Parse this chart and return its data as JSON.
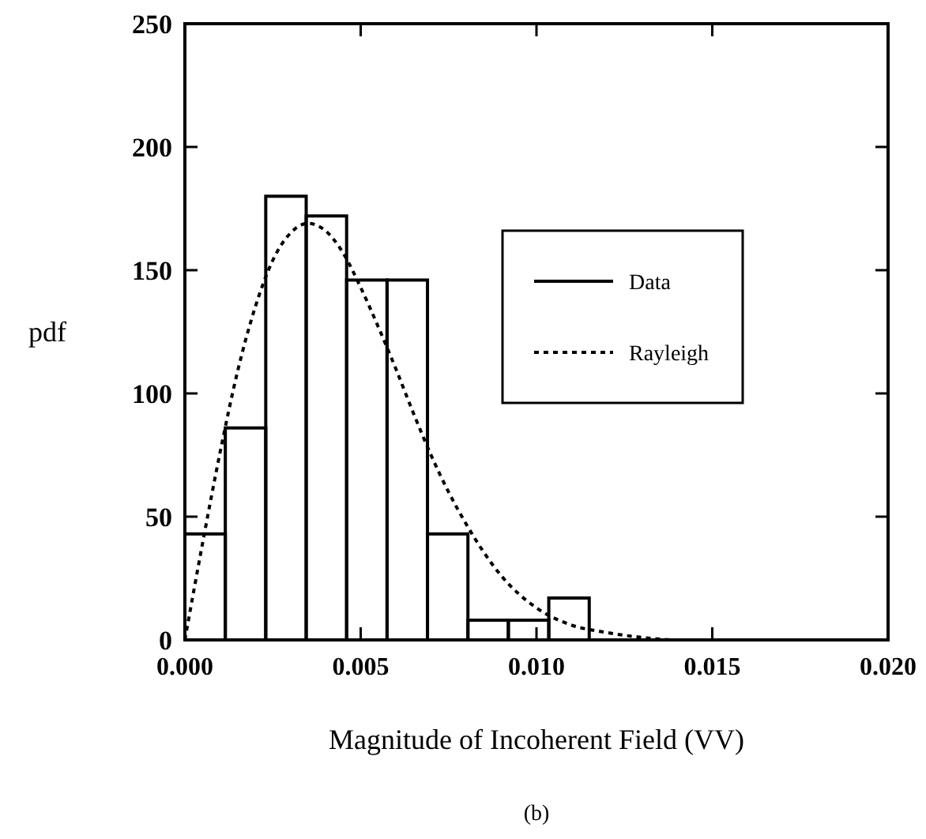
{
  "chart_data": {
    "type": "histogram",
    "xlabel": "Magnitude of Incoherent Field  (VV)",
    "ylabel": "pdf",
    "annotations": [
      "(b)"
    ],
    "xlim": [
      0,
      0.02
    ],
    "ylim": [
      0,
      250
    ],
    "xticks": [
      {
        "value": 0,
        "label": "0.000"
      },
      {
        "value": 0.005,
        "label": "0.005"
      },
      {
        "value": 0.01,
        "label": "0.010"
      },
      {
        "value": 0.015,
        "label": "0.015"
      },
      {
        "value": 0.02,
        "label": "0.020"
      }
    ],
    "yticks": [
      0,
      50,
      100,
      150,
      200,
      250
    ],
    "legend": "right",
    "grid": false,
    "bins": [
      0,
      0.00115,
      0.0023,
      0.00345,
      0.0046,
      0.00575,
      0.0069,
      0.00805,
      0.0092,
      0.01035,
      0.0115
    ],
    "series": [
      {
        "name": "Data",
        "color": "#000000",
        "line_style": "solid",
        "values": [
          43,
          86,
          180,
          172,
          146,
          146,
          43,
          8,
          8,
          17
        ]
      },
      {
        "name": "Rayleigh",
        "type": "line",
        "color": "#000000",
        "line_style": "dotted",
        "x": [
          0,
          0.0005,
          0.001,
          0.0015,
          0.002,
          0.0025,
          0.003,
          0.0035,
          0.004,
          0.0045,
          0.005,
          0.0055,
          0.006,
          0.0065,
          0.007,
          0.0075,
          0.008,
          0.009,
          0.01,
          0.011,
          0.012,
          0.013,
          0.014,
          0.02
        ],
        "values": [
          0,
          39,
          76,
          109,
          135,
          154,
          165,
          169,
          166,
          157,
          143,
          127,
          110,
          92,
          75,
          60,
          47,
          26,
          13,
          6,
          3,
          1,
          0,
          0
        ]
      }
    ]
  }
}
